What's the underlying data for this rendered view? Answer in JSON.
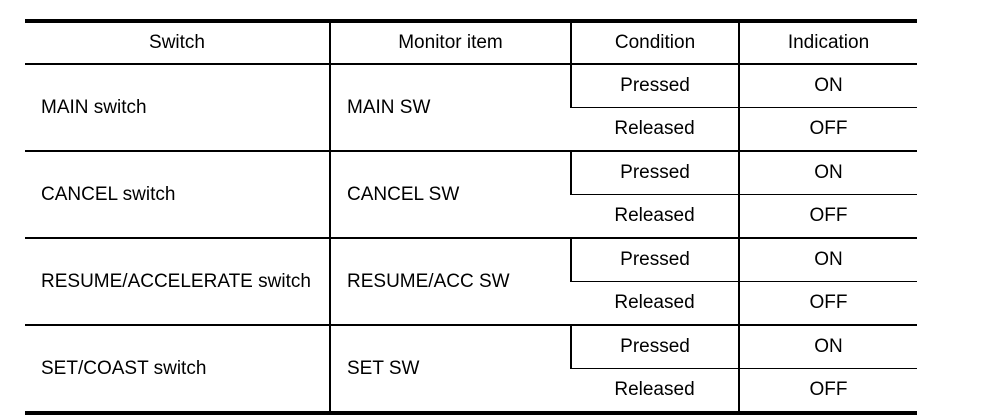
{
  "headers": [
    "Switch",
    "Monitor item",
    "Condition",
    "Indication"
  ],
  "rows": [
    {
      "switch": "MAIN switch",
      "monitor": "MAIN SW",
      "conditions": [
        {
          "condition": "Pressed",
          "indication": "ON"
        },
        {
          "condition": "Released",
          "indication": "OFF"
        }
      ]
    },
    {
      "switch": "CANCEL switch",
      "monitor": "CANCEL SW",
      "conditions": [
        {
          "condition": "Pressed",
          "indication": "ON"
        },
        {
          "condition": "Released",
          "indication": "OFF"
        }
      ]
    },
    {
      "switch": "RESUME/ACCELERATE switch",
      "monitor": "RESUME/ACC SW",
      "conditions": [
        {
          "condition": "Pressed",
          "indication": "ON"
        },
        {
          "condition": "Released",
          "indication": "OFF"
        }
      ]
    },
    {
      "switch": "SET/COAST switch",
      "monitor": "SET SW",
      "conditions": [
        {
          "condition": "Pressed",
          "indication": "ON"
        },
        {
          "condition": "Released",
          "indication": "OFF"
        }
      ]
    }
  ]
}
